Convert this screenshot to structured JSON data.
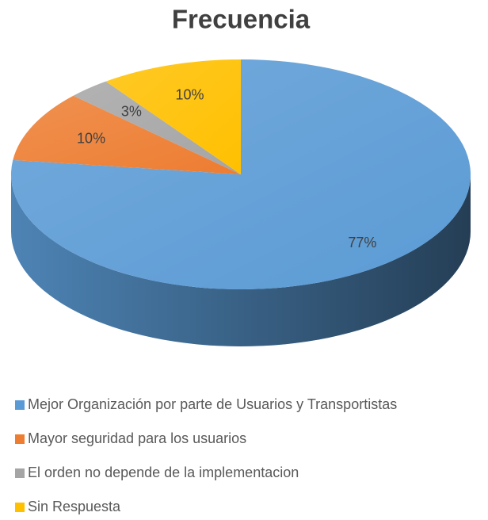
{
  "chart_data": {
    "type": "pie",
    "title": "Frecuencia",
    "categories": [
      "Mejor Organización por parte de Usuarios y Transportistas",
      "Mayor seguridad para los usuarios",
      "El orden no depende de la implementacion",
      "Sin Respuesta"
    ],
    "values": [
      77,
      10,
      3,
      10
    ],
    "value_labels": [
      "77%",
      "10%",
      "3%",
      "10%"
    ],
    "colors": [
      "#5b9bd5",
      "#ed7d31",
      "#a5a5a5",
      "#ffc000"
    ],
    "legend": "bottom"
  }
}
